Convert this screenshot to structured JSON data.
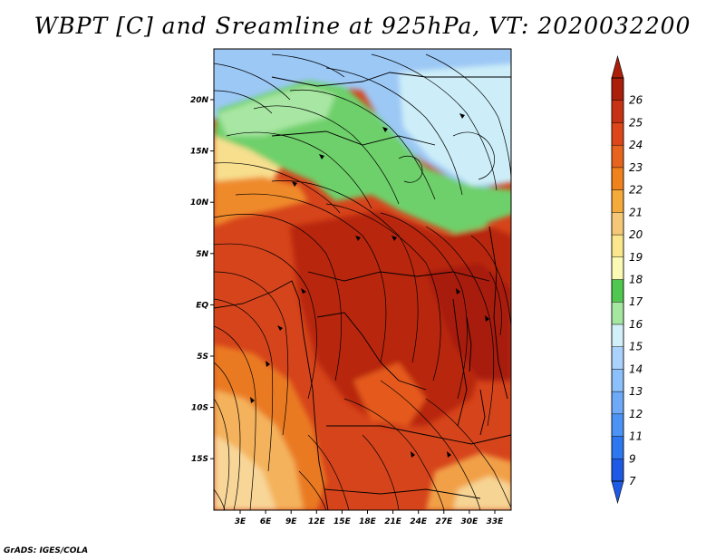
{
  "title": "WBPT [C] and Sreamline at 925hPa, VT: 2020032200",
  "footer": "GrADS: IGES/COLA",
  "map": {
    "region": "Central Africa",
    "variable": "WBPT",
    "units": "C",
    "overlay": "streamlines",
    "level": "925hPa",
    "valid_time": "2020032200"
  },
  "axes": {
    "lon_ticks": [
      "3E",
      "6E",
      "9E",
      "12E",
      "15E",
      "18E",
      "21E",
      "24E",
      "27E",
      "30E",
      "33E"
    ],
    "lat_ticks": [
      "20N",
      "15N",
      "10N",
      "5N",
      "EQ",
      "5S",
      "10S",
      "15S"
    ]
  },
  "colorbar": {
    "levels": [
      {
        "label": "7",
        "color": "#1e5ae6"
      },
      {
        "label": "9",
        "color": "#2d78f0"
      },
      {
        "label": "11",
        "color": "#4b94f5"
      },
      {
        "label": "12",
        "color": "#6eaaf7"
      },
      {
        "label": "13",
        "color": "#8cc0fa"
      },
      {
        "label": "14",
        "color": "#aad2fc"
      },
      {
        "label": "15",
        "color": "#d2f0fa"
      },
      {
        "label": "16",
        "color": "#a5e6a0"
      },
      {
        "label": "17",
        "color": "#50c850"
      },
      {
        "label": "18",
        "color": "#fafab4"
      },
      {
        "label": "19",
        "color": "#fae68c"
      },
      {
        "label": "20",
        "color": "#f5c878"
      },
      {
        "label": "21",
        "color": "#f5aa3c"
      },
      {
        "label": "22",
        "color": "#f0821e"
      },
      {
        "label": "23",
        "color": "#e6641e"
      },
      {
        "label": "24",
        "color": "#dc4619"
      },
      {
        "label": "25",
        "color": "#c83214"
      },
      {
        "label": "26",
        "color": "#aa1e0a"
      }
    ]
  },
  "colors": {
    "frame": "#000000",
    "streamline": "#000000",
    "border": "#000000"
  }
}
